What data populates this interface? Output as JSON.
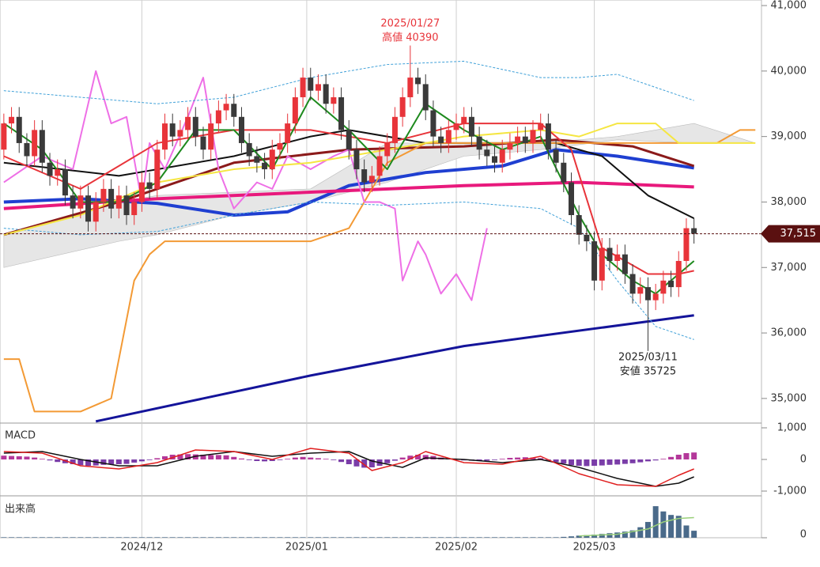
{
  "chart_data": [
    {
      "type": "candlestick",
      "up_color": "#e8343a",
      "down_color": "#3a3a3a",
      "xlim": [
        -0.5,
        98.8
      ],
      "xticks": [
        {
          "value": 18,
          "label": "2024/12"
        },
        {
          "value": 39.5,
          "label": "2025/01"
        },
        {
          "value": 59,
          "label": "2025/02"
        },
        {
          "value": 77,
          "label": "2025/03"
        }
      ],
      "ylim": [
        34624,
        41085
      ],
      "yticks": [
        {
          "value": 35000,
          "label": "35,000"
        },
        {
          "value": 36000,
          "label": "36,000"
        },
        {
          "value": 37000,
          "label": "37,000"
        },
        {
          "value": 38000,
          "label": "38,000"
        },
        {
          "value": 39000,
          "label": "39,000"
        },
        {
          "value": 40000,
          "label": "40,000"
        },
        {
          "value": 41000,
          "label": "41,000"
        }
      ],
      "last_price": {
        "value": 37515,
        "label": "37,515"
      },
      "annotations": [
        {
          "x": 53,
          "date": "2025/01/27",
          "text": "高値 40390",
          "color": "#e8343a"
        },
        {
          "x": 84,
          "date": "2025/03/11",
          "text": "安値 35725",
          "color": "#222"
        }
      ],
      "open": [
        38800,
        39200,
        39300,
        38900,
        38700,
        39100,
        38600,
        38400,
        38500,
        38100,
        37900,
        38100,
        37700,
        38000,
        38200,
        37900,
        38100,
        37800,
        38000,
        38300,
        38200,
        38800,
        39200,
        39000,
        39100,
        39300,
        39000,
        38800,
        39200,
        39400,
        39500,
        39300,
        38900,
        38700,
        38600,
        38500,
        38800,
        38900,
        39200,
        39600,
        39900,
        39700,
        39800,
        39500,
        39600,
        39100,
        38800,
        38500,
        38300,
        38400,
        38700,
        38900,
        39300,
        39600,
        39900,
        39800,
        39400,
        39000,
        38900,
        39100,
        39200,
        39300,
        39000,
        38800,
        38700,
        38600,
        38800,
        38900,
        39000,
        38900,
        39100,
        39200,
        38800,
        38600,
        38300,
        37800,
        37500,
        37400,
        36800,
        37300,
        37100,
        37200,
        36900,
        36600,
        36700,
        36500,
        36600,
        36800,
        36700,
        37100,
        37600
      ],
      "high": [
        39350,
        39450,
        39450,
        39050,
        39250,
        39250,
        38750,
        38650,
        38650,
        38250,
        38250,
        38250,
        38150,
        38350,
        38350,
        38250,
        38250,
        38150,
        38450,
        38450,
        38950,
        39350,
        39350,
        39250,
        39450,
        39450,
        39150,
        39350,
        39550,
        39650,
        39650,
        39450,
        39050,
        38850,
        38750,
        38950,
        39050,
        39350,
        39750,
        40050,
        40050,
        39950,
        39950,
        39750,
        39750,
        39250,
        38950,
        38650,
        38550,
        38850,
        39050,
        39450,
        39750,
        40390,
        40050,
        39950,
        39550,
        39150,
        39250,
        39350,
        39450,
        39450,
        39150,
        38950,
        38850,
        38950,
        39050,
        39150,
        39150,
        39250,
        39350,
        39350,
        38950,
        38750,
        38450,
        37950,
        37650,
        37550,
        37450,
        37450,
        37350,
        37350,
        37050,
        36850,
        36850,
        36750,
        36950,
        36950,
        37250,
        37750,
        37750
      ],
      "low": [
        38650,
        39050,
        38750,
        38550,
        38550,
        38450,
        38250,
        38250,
        37950,
        37750,
        37750,
        37550,
        37550,
        37850,
        37750,
        37750,
        37650,
        37650,
        37850,
        38050,
        38050,
        38650,
        38850,
        38850,
        38950,
        38850,
        38650,
        38650,
        39050,
        39250,
        39150,
        38750,
        38550,
        38450,
        38350,
        38350,
        38650,
        38750,
        39050,
        39450,
        39550,
        39550,
        39350,
        39350,
        38950,
        38650,
        38350,
        38150,
        38150,
        38250,
        38550,
        38750,
        39150,
        39450,
        39650,
        39250,
        38850,
        38750,
        38750,
        38950,
        39050,
        38850,
        38650,
        38550,
        38450,
        38450,
        38650,
        38750,
        38750,
        38750,
        38950,
        38650,
        38450,
        38150,
        37650,
        37350,
        37250,
        36650,
        36650,
        36950,
        36950,
        36750,
        36450,
        36450,
        35725,
        36350,
        36450,
        36550,
        36550,
        36950,
        37365
      ],
      "close": [
        39200,
        39300,
        38900,
        38700,
        39100,
        38600,
        38400,
        38500,
        38100,
        37900,
        38100,
        37700,
        38000,
        38200,
        37900,
        38100,
        37800,
        38000,
        38300,
        38200,
        38800,
        39200,
        39000,
        39100,
        39300,
        39000,
        38800,
        39200,
        39400,
        39500,
        39300,
        38900,
        38700,
        38600,
        38500,
        38800,
        38900,
        39200,
        39600,
        39900,
        39700,
        39800,
        39500,
        39600,
        39100,
        38800,
        38500,
        38300,
        38400,
        38700,
        38900,
        39300,
        39600,
        39900,
        39800,
        39400,
        39000,
        38900,
        39100,
        39200,
        39300,
        39000,
        38800,
        38700,
        38600,
        38800,
        38900,
        39000,
        38900,
        39100,
        39200,
        38800,
        38600,
        38300,
        37800,
        37500,
        37400,
        36800,
        37300,
        37100,
        37200,
        36900,
        36600,
        36700,
        36500,
        36600,
        36800,
        36700,
        37100,
        37600,
        37515
      ],
      "cloud": {
        "color": "#e6e6e6",
        "x": [
          0,
          15,
          20,
          30,
          40,
          50,
          60,
          70,
          80,
          90,
          98
        ],
        "upper": [
          37500,
          38000,
          38100,
          38150,
          38200,
          38900,
          38900,
          38900,
          39000,
          39200,
          38900
        ],
        "lower": [
          37000,
          37400,
          37500,
          37800,
          38000,
          38300,
          38700,
          38800,
          38950,
          38900,
          38900
        ]
      },
      "lines": [
        {
          "color": "#14149a",
          "width": 3,
          "x": [
            12,
            40,
            60,
            90
          ],
          "values": [
            34650,
            35350,
            35800,
            36270
          ]
        },
        {
          "color": "#1f3fd1",
          "width": 4,
          "x": [
            0,
            10,
            20,
            30,
            37,
            45,
            55,
            65,
            72,
            80,
            90
          ],
          "values": [
            38000,
            38050,
            37980,
            37800,
            37850,
            38250,
            38450,
            38550,
            38800,
            38700,
            38520
          ]
        },
        {
          "color": "#e8197c",
          "width": 4,
          "x": [
            0,
            20,
            40,
            60,
            75,
            90
          ],
          "values": [
            37900,
            38050,
            38150,
            38250,
            38300,
            38230
          ]
        },
        {
          "color": "#8b1a1a",
          "width": 3,
          "x": [
            0,
            15,
            30,
            45,
            60,
            72,
            82,
            90
          ],
          "values": [
            37500,
            38000,
            38600,
            38800,
            38850,
            38950,
            38850,
            38550
          ]
        },
        {
          "color": "#111111",
          "width": 2,
          "x": [
            0,
            15,
            30,
            40,
            45,
            55,
            65,
            72,
            78,
            84,
            90
          ],
          "values": [
            38600,
            38400,
            38700,
            39000,
            39100,
            38900,
            38900,
            38900,
            38700,
            38100,
            37750
          ]
        },
        {
          "color": "#f39a35",
          "width": 2,
          "x": [
            0,
            2,
            4,
            7,
            10,
            14,
            17,
            19,
            21,
            30,
            40,
            45,
            47,
            50,
            55,
            70,
            85,
            93,
            96,
            98
          ],
          "values": [
            35600,
            35600,
            34800,
            34800,
            34800,
            35000,
            36800,
            37200,
            37400,
            37400,
            37400,
            37600,
            38000,
            38600,
            38900,
            38900,
            38900,
            38900,
            39100,
            39100
          ]
        },
        {
          "color": "#ee6fe6",
          "width": 2,
          "x": [
            0,
            5,
            9,
            12,
            14,
            16,
            18,
            19,
            21,
            24,
            26,
            28,
            30,
            33,
            35,
            37,
            40,
            43,
            45,
            47,
            49,
            51,
            52,
            54,
            55,
            57,
            59,
            61,
            63
          ],
          "values": [
            38300,
            38700,
            38500,
            40000,
            39200,
            39300,
            38000,
            38900,
            38500,
            39300,
            39900,
            38500,
            37900,
            38300,
            38200,
            38700,
            38500,
            38700,
            38800,
            38000,
            38000,
            37900,
            36800,
            37400,
            37200,
            36600,
            36900,
            36500,
            37600
          ]
        },
        {
          "color": "#3fa0d8",
          "width": 1,
          "dash": "3,2",
          "x": [
            0,
            10,
            20,
            30,
            40,
            50,
            60,
            70,
            75,
            80,
            90
          ],
          "values": [
            39700,
            39600,
            39500,
            39600,
            39900,
            40100,
            40150,
            39900,
            39900,
            39950,
            39550
          ]
        },
        {
          "color": "#3fa0d8",
          "width": 1,
          "dash": "3,2",
          "x": [
            0,
            10,
            20,
            30,
            40,
            50,
            60,
            70,
            75,
            80,
            85,
            90
          ],
          "values": [
            37600,
            37500,
            37550,
            37800,
            38000,
            37950,
            38000,
            37900,
            37600,
            36800,
            36100,
            35900
          ]
        },
        {
          "color": "#f5e642",
          "width": 2,
          "x": [
            0,
            10,
            20,
            30,
            40,
            50,
            60,
            70,
            75,
            80,
            85,
            88,
            90,
            98
          ],
          "values": [
            37500,
            37800,
            38300,
            38500,
            38600,
            38800,
            39000,
            39100,
            39000,
            39200,
            39200,
            38900,
            38900,
            38900
          ]
        },
        {
          "color": "#e8343a",
          "width": 2,
          "x": [
            0,
            10,
            20,
            30,
            40,
            50,
            60,
            70,
            74,
            78,
            84,
            88,
            90
          ],
          "values": [
            38700,
            38200,
            38900,
            39100,
            39100,
            38900,
            39200,
            39200,
            38800,
            37300,
            36900,
            36900,
            36950
          ]
        },
        {
          "color": "#1e8a1e",
          "width": 2,
          "x": [
            0,
            5,
            10,
            15,
            20,
            25,
            30,
            35,
            40,
            45,
            50,
            55,
            60,
            65,
            70,
            75,
            78,
            82,
            85,
            88,
            90
          ],
          "values": [
            39200,
            38800,
            38000,
            38000,
            38300,
            39100,
            39100,
            38500,
            39600,
            39100,
            38500,
            39500,
            39100,
            38800,
            39000,
            37800,
            37200,
            36800,
            36600,
            36900,
            37100
          ]
        }
      ]
    },
    {
      "type": "macd",
      "title": "MACD",
      "ylim": [
        -1150,
        1150
      ],
      "yticks": [
        {
          "value": 1000,
          "label": "1,000"
        },
        0,
        {
          "value": -1000,
          "label": "-1,000"
        }
      ],
      "hist_color": "#7a3da8",
      "hist_up_color": "#b4389a",
      "histogram": [
        120,
        110,
        100,
        90,
        60,
        20,
        -30,
        -80,
        -120,
        -150,
        -180,
        -200,
        -190,
        -170,
        -160,
        -150,
        -140,
        -100,
        -60,
        -20,
        40,
        100,
        150,
        160,
        170,
        160,
        150,
        140,
        140,
        130,
        80,
        30,
        -20,
        -50,
        -60,
        -50,
        -20,
        20,
        60,
        80,
        60,
        40,
        20,
        -20,
        -80,
        -150,
        -220,
        -260,
        -250,
        -200,
        -120,
        -40,
        60,
        120,
        150,
        140,
        110,
        60,
        20,
        -10,
        -30,
        -40,
        -50,
        -40,
        -20,
        20,
        50,
        60,
        70,
        60,
        40,
        -20,
        -80,
        -130,
        -180,
        -200,
        -210,
        -200,
        -190,
        -170,
        -160,
        -140,
        -120,
        -90,
        -60,
        -30,
        20,
        80,
        150,
        200,
        220
      ],
      "macd": {
        "color": "#e01f1f",
        "x": [
          0,
          5,
          10,
          15,
          20,
          25,
          30,
          35,
          40,
          45,
          48,
          52,
          55,
          60,
          65,
          70,
          75,
          80,
          85,
          88,
          90
        ],
        "values": [
          250,
          200,
          -200,
          -300,
          -100,
          300,
          250,
          0,
          350,
          200,
          -350,
          -100,
          250,
          -100,
          -150,
          100,
          -450,
          -800,
          -850,
          -500,
          -300
        ]
      },
      "signal": {
        "color": "#111111",
        "x": [
          0,
          5,
          10,
          15,
          20,
          25,
          30,
          35,
          40,
          45,
          48,
          52,
          55,
          60,
          65,
          70,
          75,
          80,
          85,
          88,
          90
        ],
        "values": [
          200,
          250,
          0,
          -200,
          -200,
          100,
          250,
          100,
          200,
          250,
          -50,
          -250,
          50,
          0,
          -100,
          0,
          -250,
          -600,
          -850,
          -750,
          -550
        ]
      }
    },
    {
      "type": "volume",
      "title": "出来高",
      "ylim": [
        0,
        2300
      ],
      "yticks": [
        0
      ],
      "color": "#4a6a8a",
      "values": [
        30,
        30,
        30,
        30,
        30,
        30,
        30,
        30,
        30,
        30,
        30,
        30,
        30,
        30,
        30,
        30,
        30,
        30,
        30,
        30,
        30,
        30,
        30,
        30,
        30,
        30,
        30,
        30,
        30,
        30,
        30,
        30,
        30,
        30,
        30,
        30,
        30,
        30,
        30,
        30,
        30,
        30,
        30,
        30,
        30,
        30,
        30,
        30,
        30,
        30,
        30,
        30,
        30,
        30,
        30,
        30,
        30,
        30,
        30,
        30,
        30,
        30,
        30,
        30,
        30,
        30,
        30,
        30,
        30,
        30,
        30,
        30,
        30,
        50,
        80,
        120,
        150,
        180,
        220,
        260,
        300,
        350,
        420,
        600,
        900,
        1800,
        1500,
        1300,
        1250,
        700,
        400
      ],
      "avg": {
        "color": "#9ad07a",
        "x": [
          75,
          80,
          84,
          86,
          88,
          90
        ],
        "values": [
          100,
          200,
          500,
          900,
          1100,
          1150
        ]
      }
    }
  ]
}
